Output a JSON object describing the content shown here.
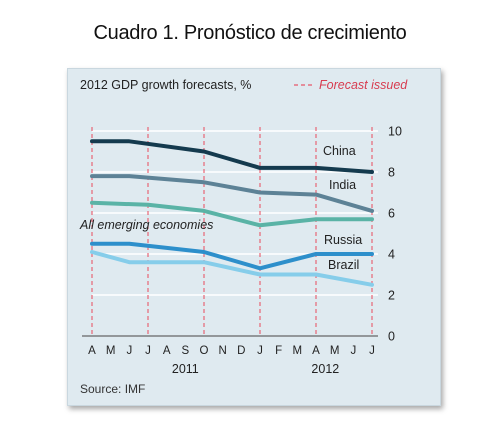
{
  "page_title": "Cuadro 1. Pronóstico de crecimiento",
  "colors": {
    "background": "#dfeaf0",
    "forecast_line": "#e8586a",
    "china": "#143a4e",
    "india": "#5d8296",
    "emerging": "#5ab3a6",
    "russia": "#2d8fcb",
    "brazil": "#86cdea"
  },
  "chart_data": {
    "type": "line",
    "title": "2012 GDP growth forecasts, %",
    "legend": "Forecast issued",
    "legend_placement": "top-right",
    "source": "Source: IMF",
    "x_tick_labels": [
      "A",
      "M",
      "J",
      "J",
      "A",
      "S",
      "O",
      "N",
      "D",
      "J",
      "F",
      "M",
      "A",
      "M",
      "J",
      "J"
    ],
    "year_labels": [
      {
        "label": "2011",
        "at_index": 5
      },
      {
        "label": "2012",
        "at_index": 12.5
      }
    ],
    "forecast_issued_indices": [
      0,
      3,
      6,
      9,
      12,
      15
    ],
    "y_axis": {
      "range": [
        0,
        10
      ],
      "ticks": [
        0,
        2,
        4,
        6,
        8,
        10
      ],
      "side": "right"
    },
    "series": [
      {
        "name": "China",
        "key": "china",
        "points": [
          [
            0,
            9.5
          ],
          [
            2,
            9.5
          ],
          [
            6,
            9.0
          ],
          [
            9,
            8.2
          ],
          [
            12,
            8.2
          ],
          [
            15,
            8.0
          ]
        ]
      },
      {
        "name": "India",
        "key": "india",
        "points": [
          [
            0,
            7.8
          ],
          [
            2,
            7.8
          ],
          [
            6,
            7.5
          ],
          [
            9,
            7.0
          ],
          [
            12,
            6.9
          ],
          [
            15,
            6.1
          ]
        ]
      },
      {
        "name": "All emerging economies",
        "key": "emerging",
        "points": [
          [
            0,
            6.5
          ],
          [
            3,
            6.4
          ],
          [
            6,
            6.1
          ],
          [
            9,
            5.4
          ],
          [
            12,
            5.7
          ],
          [
            15,
            5.7
          ]
        ]
      },
      {
        "name": "Russia",
        "key": "russia",
        "points": [
          [
            0,
            4.5
          ],
          [
            2,
            4.5
          ],
          [
            6,
            4.1
          ],
          [
            9,
            3.3
          ],
          [
            12,
            4.0
          ],
          [
            15,
            4.0
          ]
        ]
      },
      {
        "name": "Brazil",
        "key": "brazil",
        "points": [
          [
            0,
            4.1
          ],
          [
            2,
            3.6
          ],
          [
            6,
            3.6
          ],
          [
            9,
            3.0
          ],
          [
            12,
            3.0
          ],
          [
            15,
            2.5
          ]
        ]
      }
    ]
  }
}
